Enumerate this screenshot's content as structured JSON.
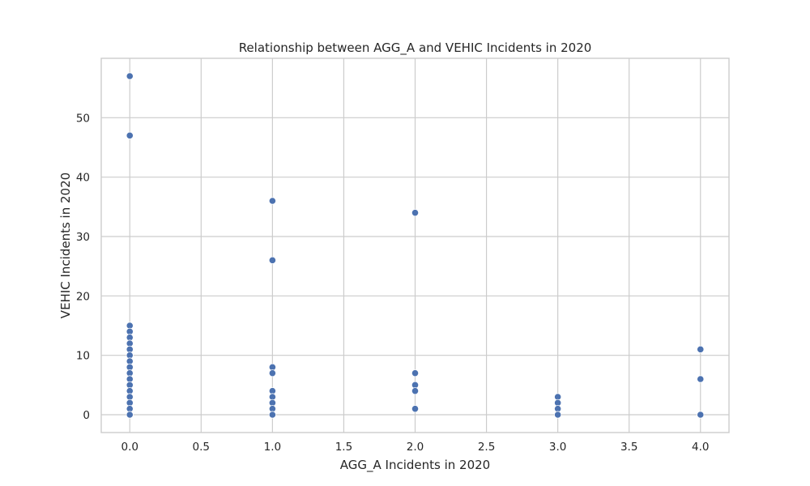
{
  "chart_data": {
    "type": "scatter",
    "title": "Relationship between AGG_A and VEHIC Incidents in 2020",
    "xlabel": "AGG_A Incidents in 2020",
    "ylabel": "VEHIC Incidents in 2020",
    "xlim": [
      -0.2,
      4.2
    ],
    "ylim": [
      -3,
      60
    ],
    "xticks": [
      "0.0",
      "0.5",
      "1.0",
      "1.5",
      "2.0",
      "2.5",
      "3.0",
      "3.5",
      "4.0"
    ],
    "xtick_values": [
      0,
      0.5,
      1,
      1.5,
      2,
      2.5,
      3,
      3.5,
      4
    ],
    "yticks": [
      "0",
      "10",
      "20",
      "30",
      "40",
      "50"
    ],
    "ytick_values": [
      0,
      10,
      20,
      30,
      40,
      50
    ],
    "grid": true,
    "colors": {
      "point": "#4c72b0",
      "grid": "#cccccc",
      "text": "#262626"
    },
    "points": [
      {
        "x": 0,
        "y": 57
      },
      {
        "x": 0,
        "y": 47
      },
      {
        "x": 0,
        "y": 15
      },
      {
        "x": 0,
        "y": 14
      },
      {
        "x": 0,
        "y": 13
      },
      {
        "x": 0,
        "y": 12
      },
      {
        "x": 0,
        "y": 11
      },
      {
        "x": 0,
        "y": 10
      },
      {
        "x": 0,
        "y": 9
      },
      {
        "x": 0,
        "y": 8
      },
      {
        "x": 0,
        "y": 7
      },
      {
        "x": 0,
        "y": 6
      },
      {
        "x": 0,
        "y": 5
      },
      {
        "x": 0,
        "y": 4
      },
      {
        "x": 0,
        "y": 3
      },
      {
        "x": 0,
        "y": 2
      },
      {
        "x": 0,
        "y": 1
      },
      {
        "x": 0,
        "y": 0
      },
      {
        "x": 1,
        "y": 36
      },
      {
        "x": 1,
        "y": 26
      },
      {
        "x": 1,
        "y": 8
      },
      {
        "x": 1,
        "y": 7
      },
      {
        "x": 1,
        "y": 4
      },
      {
        "x": 1,
        "y": 3
      },
      {
        "x": 1,
        "y": 2
      },
      {
        "x": 1,
        "y": 1
      },
      {
        "x": 1,
        "y": 0
      },
      {
        "x": 2,
        "y": 34
      },
      {
        "x": 2,
        "y": 7
      },
      {
        "x": 2,
        "y": 5
      },
      {
        "x": 2,
        "y": 4
      },
      {
        "x": 2,
        "y": 1
      },
      {
        "x": 3,
        "y": 3
      },
      {
        "x": 3,
        "y": 2
      },
      {
        "x": 3,
        "y": 1
      },
      {
        "x": 3,
        "y": 0
      },
      {
        "x": 4,
        "y": 11
      },
      {
        "x": 4,
        "y": 6
      },
      {
        "x": 4,
        "y": 0
      }
    ]
  }
}
